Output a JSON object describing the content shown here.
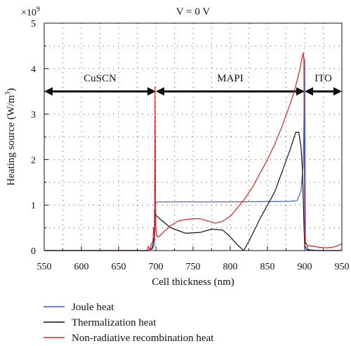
{
  "chart_data": {
    "type": "line",
    "title": "V = 0 V",
    "xlabel": "Cell thickness (nm)",
    "ylabel_main": "Heating source (W/m",
    "ylabel_sup": "3",
    "ylabel_end": ")",
    "y_multiplier_base": "×10",
    "y_multiplier_exp": "9",
    "xlim": [
      550,
      950
    ],
    "ylim": [
      0,
      5
    ],
    "x_ticks": [
      "550",
      "600",
      "650",
      "700",
      "750",
      "800",
      "850",
      "900",
      "950"
    ],
    "y_ticks": [
      "0",
      "1",
      "2",
      "3",
      "4",
      "5"
    ],
    "grid": "dotted",
    "regions": [
      {
        "label": "CuSCN",
        "from": 550,
        "to": 700
      },
      {
        "label": "MAPI",
        "from": 700,
        "to": 900
      },
      {
        "label": "ITO",
        "from": 900,
        "to": 950
      }
    ],
    "region_arrow_y": 3.5,
    "series": [
      {
        "name": "Joule heat",
        "color": "#3a5bd9",
        "x": [
          550,
          690,
          696,
          698,
          699,
          700,
          702,
          710,
          800,
          880,
          890,
          895,
          898,
          899,
          900,
          901,
          905,
          920,
          950
        ],
        "y": [
          0.0,
          0.0,
          0.05,
          0.15,
          0.6,
          1.05,
          1.07,
          1.07,
          1.07,
          1.08,
          1.1,
          1.3,
          1.9,
          2.8,
          4.2,
          0.2,
          0.02,
          0.0,
          0.0
        ]
      },
      {
        "name": "Thermalization heat",
        "color": "#111111",
        "x": [
          550,
          690,
          695,
          698,
          699,
          700,
          705,
          720,
          740,
          760,
          775,
          790,
          800,
          810,
          818,
          825,
          840,
          860,
          880,
          888,
          892,
          895,
          897,
          898,
          899,
          900,
          901,
          903,
          910,
          950
        ],
        "y": [
          0.0,
          0.0,
          0.05,
          0.3,
          0.9,
          0.78,
          0.7,
          0.5,
          0.38,
          0.4,
          0.47,
          0.45,
          0.3,
          0.12,
          0.0,
          0.2,
          0.7,
          1.3,
          2.2,
          2.6,
          2.6,
          2.3,
          1.8,
          1.2,
          0.6,
          0.1,
          0.08,
          0.02,
          0.0,
          0.0
        ]
      },
      {
        "name": "Non-radiative recombination heat",
        "color": "#e82020",
        "x": [
          550,
          688,
          690,
          692,
          694,
          696,
          697,
          698,
          699,
          699.5,
          700,
          701,
          702,
          705,
          710,
          720,
          730,
          740,
          750,
          760,
          770,
          780,
          790,
          800,
          810,
          820,
          830,
          840,
          850,
          860,
          870,
          880,
          885,
          890,
          893,
          896,
          898,
          899,
          900,
          901,
          903,
          905,
          910,
          920,
          930,
          940,
          950
        ],
        "y": [
          0.0,
          0.0,
          0.1,
          0.0,
          0.15,
          0.2,
          0.5,
          0.3,
          3.6,
          1.0,
          0.5,
          0.35,
          0.3,
          0.32,
          0.4,
          0.55,
          0.65,
          0.68,
          0.7,
          0.7,
          0.65,
          0.6,
          0.65,
          0.75,
          0.95,
          1.15,
          1.4,
          1.7,
          2.0,
          2.35,
          2.75,
          3.2,
          3.45,
          3.75,
          3.95,
          4.2,
          4.35,
          4.2,
          0.35,
          0.15,
          0.12,
          0.11,
          0.1,
          0.07,
          0.06,
          0.08,
          0.15
        ]
      }
    ],
    "legend_position": "below plot"
  }
}
